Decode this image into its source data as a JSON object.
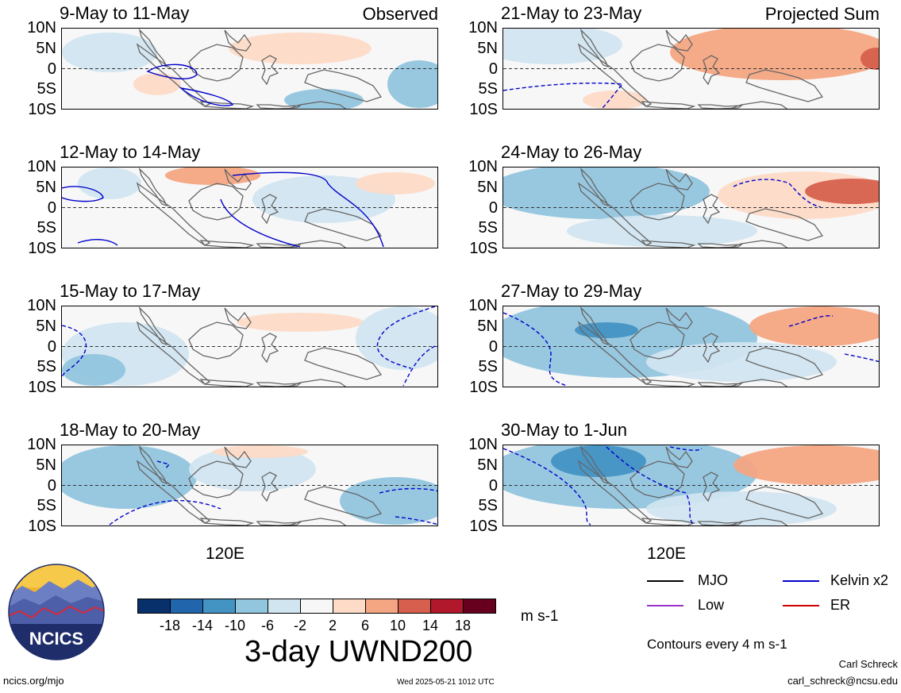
{
  "panels": [
    {
      "title": "9-May to 11-May",
      "label": "Observed",
      "col": 0,
      "row": 0
    },
    {
      "title": "12-May to 14-May",
      "label": "",
      "col": 0,
      "row": 1
    },
    {
      "title": "15-May to 17-May",
      "label": "",
      "col": 0,
      "row": 2
    },
    {
      "title": "18-May to 20-May",
      "label": "",
      "col": 0,
      "row": 3
    },
    {
      "title": "21-May to 23-May",
      "label": "Projected Sum",
      "col": 1,
      "row": 0
    },
    {
      "title": "24-May to 26-May",
      "label": "",
      "col": 1,
      "row": 1
    },
    {
      "title": "27-May to 29-May",
      "label": "",
      "col": 1,
      "row": 2
    },
    {
      "title": "30-May to 1-Jun",
      "label": "",
      "col": 1,
      "row": 3
    }
  ],
  "lat_labels": [
    "10N",
    "5N",
    "0",
    "5S",
    "10S"
  ],
  "lon_label": "120E",
  "colorbar": {
    "colors": [
      "#08306b",
      "#2166ac",
      "#4393c3",
      "#92c5de",
      "#d1e5f0",
      "#f7f7f7",
      "#fddbc7",
      "#f4a582",
      "#d6604d",
      "#b2182b",
      "#67001f"
    ],
    "ticks": [
      "-18",
      "-14",
      "-10",
      "-6",
      "-2",
      "2",
      "6",
      "10",
      "14",
      "18"
    ],
    "units": "m s-1",
    "title": "3-day UWND200"
  },
  "legend": {
    "items": [
      {
        "label": "MJO",
        "color": "#000000"
      },
      {
        "label": "Kelvin x2",
        "color": "#0000cc"
      },
      {
        "label": "Low",
        "color": "#9933cc"
      },
      {
        "label": "ER",
        "color": "#cc0000"
      }
    ],
    "contours": "Contours every 4 m s-1"
  },
  "logo_text": "NCICS",
  "footer": {
    "url": "ncics.org/mjo",
    "timestamp": "Wed 2025-05-21 1012 UTC",
    "author": "Carl Schreck",
    "email": "carl_schreck@ncsu.edu"
  }
}
